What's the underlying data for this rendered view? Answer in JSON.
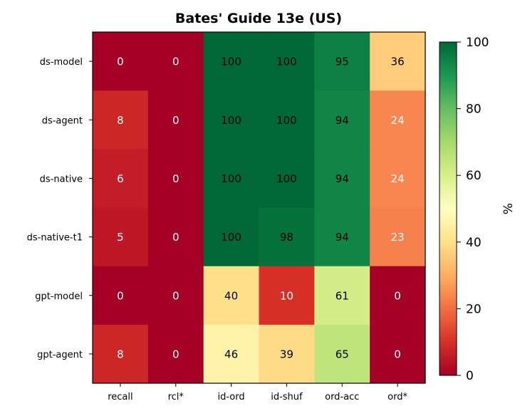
{
  "chart_data": {
    "type": "heatmap",
    "title": "Bates' Guide 13e (US)",
    "x_categories": [
      "recall",
      "rcl*",
      "id-ord",
      "id-shuf",
      "ord-acc",
      "ord*"
    ],
    "y_categories": [
      "ds-model",
      "ds-agent",
      "ds-native",
      "ds-native-t1",
      "gpt-model",
      "gpt-agent"
    ],
    "values": [
      [
        0,
        0,
        100,
        100,
        95,
        36
      ],
      [
        8,
        0,
        100,
        100,
        94,
        24
      ],
      [
        6,
        0,
        100,
        100,
        94,
        24
      ],
      [
        5,
        0,
        100,
        98,
        94,
        23
      ],
      [
        0,
        0,
        40,
        10,
        61,
        0
      ],
      [
        8,
        0,
        46,
        39,
        65,
        0
      ]
    ],
    "colorbar": {
      "label": "%",
      "range": [
        0,
        100
      ],
      "ticks": [
        "0",
        "20",
        "40",
        "60",
        "80",
        "100"
      ],
      "colormap": "RdYlGn"
    }
  }
}
